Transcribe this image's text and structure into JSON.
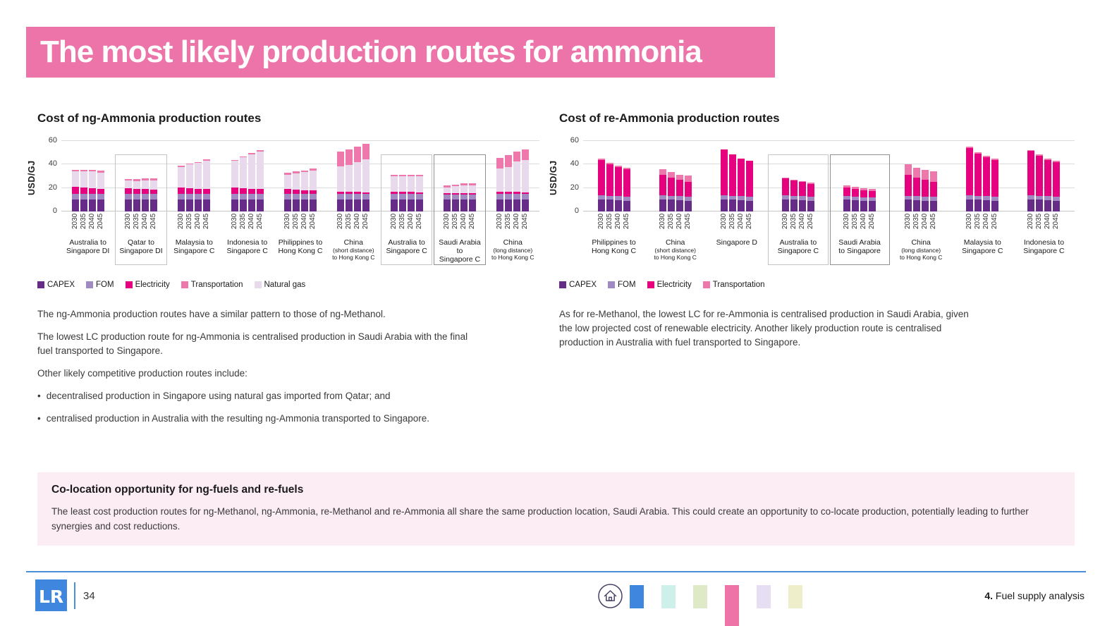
{
  "banner": {
    "title": "The most likely production routes for ammonia",
    "bg_color": "#ec74a8"
  },
  "chart_data": [
    {
      "type": "bar",
      "stacked": true,
      "title": "Cost of ng-Ammonia production routes",
      "ylabel": "USD/GJ",
      "ylim": [
        0,
        60
      ],
      "yticks": [
        0,
        20,
        40,
        60
      ],
      "x_years": [
        "2030",
        "2035",
        "2040",
        "2045"
      ],
      "stack_order": [
        "CAPEX",
        "FOM",
        "Electricity",
        "Natural gas",
        "Transportation"
      ],
      "legend": [
        "CAPEX",
        "FOM",
        "Electricity",
        "Transportation",
        "Natural gas"
      ],
      "colors": {
        "CAPEX": "#662c88",
        "FOM": "#a18ac2",
        "Electricity": "#e6017f",
        "Transportation": "#ee77ac",
        "Natural gas": "#e9d9ec"
      },
      "groups": [
        {
          "label": [
            "Australia to",
            "Singapore DI"
          ],
          "bars": [
            [
              10,
              5,
              6,
              13,
              1.5
            ],
            [
              10,
              5,
              5.5,
              13.5,
              1.5
            ],
            [
              10,
              5,
              5,
              14,
              1.5
            ],
            [
              10,
              5,
              4.5,
              13.8,
              1.7
            ]
          ]
        },
        {
          "label": [
            "Qatar to",
            "Singapore DI"
          ],
          "box": "light",
          "bars": [
            [
              10,
              5,
              5,
              6.3,
              1.5
            ],
            [
              10,
              5,
              4.5,
              6.5,
              1.5
            ],
            [
              10,
              5,
              4,
              7.5,
              1.7
            ],
            [
              10,
              5,
              3.8,
              7.8,
              1.7
            ]
          ]
        },
        {
          "label": [
            "Malaysia to",
            "Singapore C"
          ],
          "bars": [
            [
              10,
              5,
              5.5,
              17.5,
              0.8
            ],
            [
              10,
              5,
              5,
              20,
              0.8
            ],
            [
              10,
              5,
              4.5,
              22,
              0.8
            ],
            [
              10,
              5,
              4,
              24.5,
              0.8
            ]
          ]
        },
        {
          "label": [
            "Indonesia to",
            "Singapore C"
          ],
          "bars": [
            [
              10,
              5,
              5.5,
              22.5,
              1
            ],
            [
              10,
              5,
              5,
              26,
              1
            ],
            [
              10,
              5,
              4.5,
              29,
              1.2
            ],
            [
              10,
              5,
              4,
              32,
              1.2
            ]
          ]
        },
        {
          "label": [
            "Philippines to",
            "Hong Kong C"
          ],
          "bars": [
            [
              10,
              5,
              4,
              12.5,
              1.5
            ],
            [
              10,
              5,
              3.5,
              14,
              1.5
            ],
            [
              10,
              5,
              3,
              15.5,
              1.5
            ],
            [
              10,
              5,
              2.8,
              17.2,
              1.5
            ]
          ]
        },
        {
          "label": [
            "China",
            "(short distance)",
            "to Hong Kong C"
          ],
          "small": [
            false,
            true,
            true
          ],
          "bars": [
            [
              10,
              5,
              2,
              21.5,
              12.5
            ],
            [
              10,
              5,
              2,
              22.5,
              13.5
            ],
            [
              10,
              5,
              1.8,
              25.2,
              13
            ],
            [
              10,
              5,
              1.5,
              28,
              13
            ]
          ]
        },
        {
          "label": [
            "Australia to",
            "Singapore C"
          ],
          "box": "light",
          "bars": [
            [
              10,
              5,
              2,
              13,
              1.5
            ],
            [
              10,
              5,
              2,
              13,
              1.5
            ],
            [
              10,
              5,
              1.8,
              13.2,
              1.5
            ],
            [
              10,
              5,
              1.5,
              13.3,
              1.7
            ]
          ]
        },
        {
          "label": [
            "Saudi Arabia",
            "to",
            "Singapore C"
          ],
          "box": "dark",
          "bars": [
            [
              10,
              4.5,
              1.2,
              4.8,
              1.5
            ],
            [
              10,
              4.5,
              1.2,
              5.8,
              1.5
            ],
            [
              10,
              4.5,
              1,
              6.5,
              1.8
            ],
            [
              10,
              4.5,
              1,
              6.5,
              2
            ]
          ]
        },
        {
          "label": [
            "China",
            "(long distance)",
            "to Hong Kong C"
          ],
          "small": [
            false,
            true,
            true
          ],
          "bars": [
            [
              10,
              5,
              2,
              19.5,
              9
            ],
            [
              10,
              5,
              2,
              21,
              9.8
            ],
            [
              10,
              5,
              1.8,
              25.7,
              8.5
            ],
            [
              10,
              5,
              1.5,
              27.5,
              9
            ]
          ]
        }
      ]
    },
    {
      "type": "bar",
      "stacked": true,
      "title": "Cost of re-Ammonia production routes",
      "ylabel": "USD/GJ",
      "ylim": [
        0,
        60
      ],
      "yticks": [
        0,
        20,
        40,
        60
      ],
      "x_years": [
        "2030",
        "2035",
        "2040",
        "2045"
      ],
      "stack_order": [
        "CAPEX",
        "FOM",
        "Electricity",
        "Transportation"
      ],
      "legend": [
        "CAPEX",
        "FOM",
        "Electricity",
        "Transportation"
      ],
      "colors": {
        "CAPEX": "#662c88",
        "FOM": "#a18ac2",
        "Electricity": "#e6017f",
        "Transportation": "#ee77ac"
      },
      "groups": [
        {
          "label": [
            "Philippines to",
            "Hong Kong C"
          ],
          "bars": [
            [
              10.5,
              3.5,
              30,
              1
            ],
            [
              10,
              3.5,
              27,
              1
            ],
            [
              9.5,
              3.5,
              25,
              1
            ],
            [
              9,
              3.5,
              23.5,
              1
            ]
          ]
        },
        {
          "label": [
            "China",
            "(short distance)",
            "to Hong Kong C"
          ],
          "small": [
            false,
            true,
            true
          ],
          "bars": [
            [
              10.5,
              3.5,
              17,
              5
            ],
            [
              10,
              3.5,
              15.5,
              4.5
            ],
            [
              9.5,
              3.5,
              14,
              4.5
            ],
            [
              9,
              3.5,
              13,
              5
            ]
          ]
        },
        {
          "label": [
            "Singapore D"
          ],
          "bars": [
            [
              10.5,
              3.5,
              39,
              0
            ],
            [
              10,
              3.5,
              35,
              0
            ],
            [
              9.5,
              3.5,
              32,
              0
            ],
            [
              9,
              3.5,
              30.5,
              0
            ]
          ]
        },
        {
          "label": [
            "Australia to",
            "Singapore C"
          ],
          "box": "light",
          "bars": [
            [
              10.5,
              3.5,
              14,
              1
            ],
            [
              10,
              3.5,
              12.8,
              1
            ],
            [
              9.5,
              3.5,
              12,
              1
            ],
            [
              9,
              3.5,
              11.2,
              1
            ]
          ]
        },
        {
          "label": [
            "Saudi Arabia",
            "to Singapore"
          ],
          "box": "dark",
          "bars": [
            [
              10,
              3,
              7.5,
              1.5
            ],
            [
              9.5,
              3,
              7,
              1.5
            ],
            [
              9.2,
              3,
              6.1,
              1.5
            ],
            [
              9,
              3,
              5.7,
              1.5
            ]
          ]
        },
        {
          "label": [
            "China",
            "(long distance)",
            "to Hong Kong C"
          ],
          "small": [
            false,
            true,
            true
          ],
          "bars": [
            [
              10,
              3.5,
              18,
              8.5
            ],
            [
              9.5,
              3.5,
              16,
              8.5
            ],
            [
              9.2,
              3.5,
              14.3,
              8.5
            ],
            [
              9,
              3.5,
              13,
              8.5
            ]
          ]
        },
        {
          "label": [
            "Malaysia to",
            "Singapore C"
          ],
          "bars": [
            [
              10.5,
              3.5,
              40,
              1
            ],
            [
              10,
              3.5,
              36,
              1
            ],
            [
              9.5,
              3.5,
              33.5,
              1
            ],
            [
              9,
              3.5,
              31.3,
              1
            ]
          ]
        },
        {
          "label": [
            "Indonesia to",
            "Singapore C"
          ],
          "bars": [
            [
              10.5,
              3.5,
              37.5,
              1
            ],
            [
              10,
              3.5,
              34,
              1
            ],
            [
              9.5,
              3.5,
              31,
              1
            ],
            [
              9,
              3.5,
              29.5,
              1
            ]
          ]
        }
      ]
    }
  ],
  "left_text": {
    "paragraphs": [
      "The ng-Ammonia production routes have a similar pattern to those of ng-Methanol.",
      "The lowest LC production route for ng-Ammonia is centralised production in Saudi Arabia with the final fuel transported to Singapore.",
      "Other likely competitive production routes include:"
    ],
    "bullets": [
      "decentralised production in Singapore using natural gas imported from Qatar; and",
      "centralised production in Australia with the resulting ng-Ammonia transported to Singapore."
    ],
    "bullet_glyph": "•"
  },
  "right_text": {
    "paragraphs": [
      "As for re-Methanol, the lowest LC for re-Ammonia is centralised production in Saudi Arabia, given the low projected cost of renewable electricity. Another likely production route is centralised production in Australia with fuel transported to Singapore."
    ]
  },
  "callout": {
    "title": "Co-location opportunity for ng-fuels and re-fuels",
    "body": "The least cost production routes for ng-Methanol, ng-Ammonia, re-Methanol and re-Ammonia all share the same production location, Saudi Arabia. This could create an opportunity to co-locate production, potentially leading to further synergies and cost reductions."
  },
  "footer": {
    "logo_text": "LR",
    "page_number": "34",
    "section_number": "4.",
    "section_title": " Fuel supply analysis",
    "line_color": "#4a90d9",
    "logo_color": "#3e86de",
    "swatches": [
      {
        "color": "#3e86de",
        "tall": false
      },
      {
        "color": "#cdf0ea",
        "tall": false
      },
      {
        "color": "#dee9c8",
        "tall": false
      },
      {
        "color": "#ee74a8",
        "tall": true
      },
      {
        "color": "#e6dff4",
        "tall": false
      },
      {
        "color": "#eeeecb",
        "tall": false
      }
    ]
  }
}
